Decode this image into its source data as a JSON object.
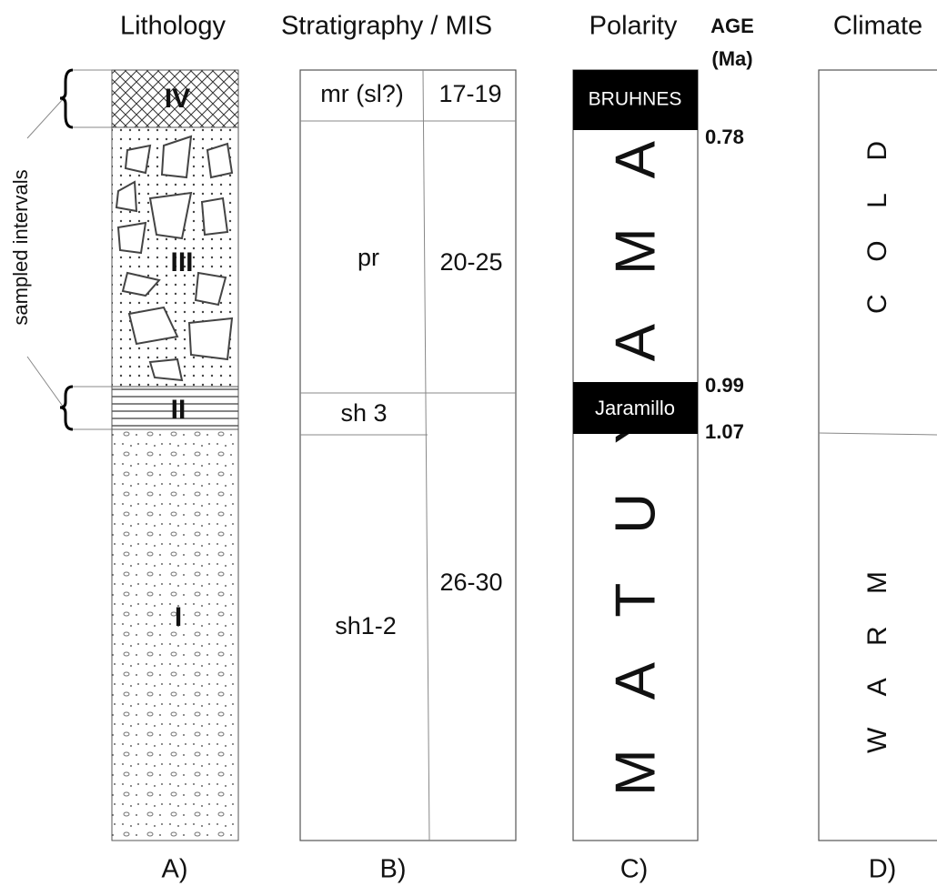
{
  "headers": {
    "lithology": "Lithology",
    "stratigraphy": "Stratigraphy / MIS",
    "polarity": "Polarity",
    "age": [
      "AGE",
      "(Ma)"
    ],
    "climate": "Climate"
  },
  "sampled_intervals": "sampled intervals",
  "lithology": {
    "units": [
      "IV",
      "III",
      "II",
      "I"
    ]
  },
  "stratigraphy": {
    "units": [
      "mr (sl?)",
      "pr",
      "sh 3",
      "sh1-2"
    ],
    "mis": [
      "17-19",
      "20-25",
      "26-30"
    ]
  },
  "polarity": {
    "chrons": [
      "BRUHNES",
      "MATUYAMA"
    ],
    "subchron": "Jaramillo"
  },
  "ages": [
    "0.78",
    "0.99",
    "1.07"
  ],
  "climate": [
    "COLD",
    "WARM"
  ],
  "panel_labels": [
    "A)",
    "B)",
    "C)",
    "D)"
  ]
}
